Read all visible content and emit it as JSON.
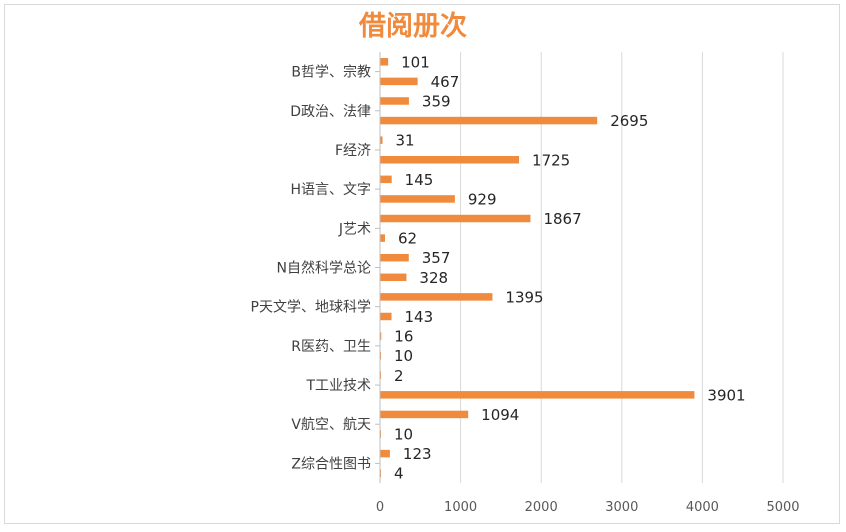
{
  "chart_data": {
    "type": "bar",
    "orientation": "horizontal",
    "title": "借阅册次",
    "xlabel": "",
    "ylabel": "",
    "xlim": [
      0,
      5000
    ],
    "x_ticks": [
      0,
      1000,
      2000,
      3000,
      4000,
      5000
    ],
    "grid": true,
    "bar_color": "#f08a3c",
    "categories": [
      {
        "label": "",
        "value": 101
      },
      {
        "label": "B哲学、宗教",
        "value": 467
      },
      {
        "label": "",
        "value": 359
      },
      {
        "label": "D政治、法律",
        "value": 2695
      },
      {
        "label": "",
        "value": 31
      },
      {
        "label": "F经济",
        "value": 1725
      },
      {
        "label": "",
        "value": 145
      },
      {
        "label": "H语言、文字",
        "value": 929
      },
      {
        "label": "",
        "value": 1867
      },
      {
        "label": "J艺术",
        "value": 62
      },
      {
        "label": "",
        "value": 357
      },
      {
        "label": "N自然科学总论",
        "value": 328
      },
      {
        "label": "",
        "value": 1395
      },
      {
        "label": "P天文学、地球科学",
        "value": 143
      },
      {
        "label": "",
        "value": 16
      },
      {
        "label": "R医药、卫生",
        "value": 10
      },
      {
        "label": "",
        "value": 2
      },
      {
        "label": "T工业技术",
        "value": 3901
      },
      {
        "label": "",
        "value": 1094
      },
      {
        "label": "V航空、航天",
        "value": 10
      },
      {
        "label": "",
        "value": 123
      },
      {
        "label": "Z综合性图书",
        "value": 4
      }
    ]
  }
}
